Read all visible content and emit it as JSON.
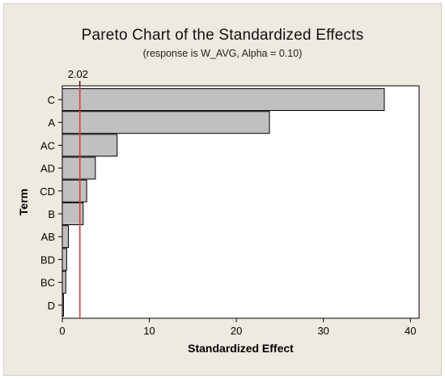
{
  "chart_data": {
    "type": "bar",
    "orientation": "horizontal",
    "title": "Pareto Chart of the Standardized Effects",
    "subtitle": "(response is W_AVG, Alpha = 0.10)",
    "xlabel": "Standardized Effect",
    "ylabel": "Term",
    "categories": [
      "C",
      "A",
      "AC",
      "AD",
      "CD",
      "B",
      "AB",
      "BD",
      "BC",
      "D"
    ],
    "values": [
      37.0,
      23.8,
      6.3,
      3.8,
      2.8,
      2.4,
      0.7,
      0.5,
      0.4,
      0.1
    ],
    "xlim": [
      0,
      41
    ],
    "xticks": [
      0,
      10,
      20,
      30,
      40
    ],
    "reference_line": {
      "value": 2.02,
      "label": "2.02",
      "color": "#d04040"
    },
    "bar_color": "#c0c0c0",
    "grid": false
  }
}
